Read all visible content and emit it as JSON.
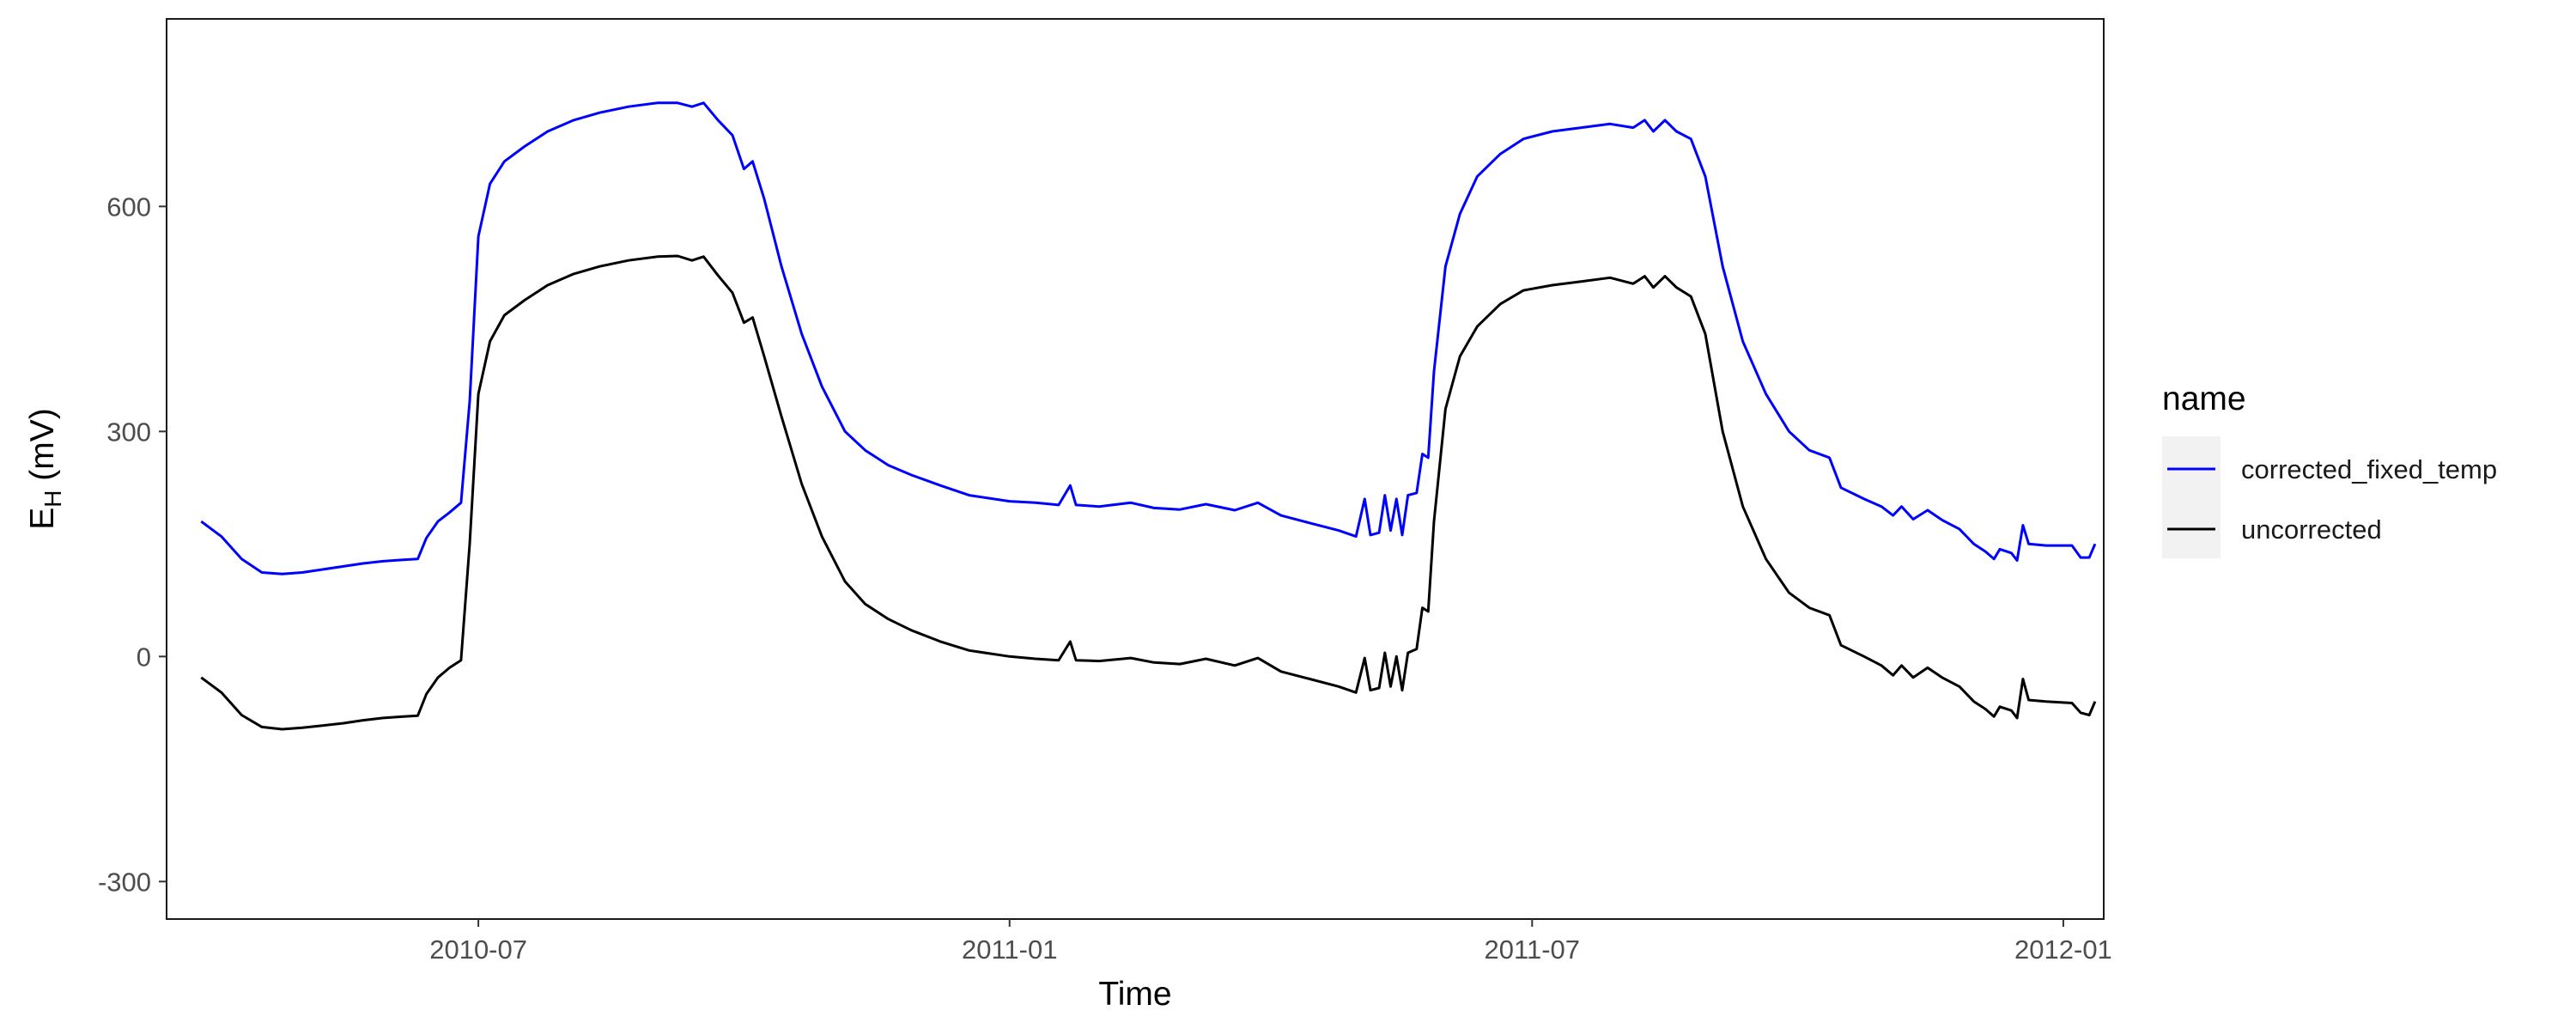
{
  "chart_data": {
    "type": "line",
    "title": "",
    "xlabel": "Time",
    "ylabel_main": "E",
    "ylabel_sub": "H",
    "ylabel_unit": " (mV)",
    "xlim": [
      "2010-03-15",
      "2012-01-15"
    ],
    "ylim": [
      -350,
      850
    ],
    "x_ticks": [
      {
        "date": "2010-07-01",
        "label": "2010-07"
      },
      {
        "date": "2011-01-01",
        "label": "2011-01"
      },
      {
        "date": "2011-07-01",
        "label": "2011-07"
      },
      {
        "date": "2012-01-01",
        "label": "2012-01"
      }
    ],
    "y_ticks": [
      -300,
      0,
      300,
      600
    ],
    "grid": false,
    "legend": {
      "title": "name",
      "position": "right"
    },
    "series": [
      {
        "name": "corrected_fixed_temp",
        "color": "#0000ff",
        "points": [
          [
            "2010-03-27",
            180
          ],
          [
            "2010-04-03",
            160
          ],
          [
            "2010-04-10",
            130
          ],
          [
            "2010-04-17",
            112
          ],
          [
            "2010-04-24",
            110
          ],
          [
            "2010-05-01",
            112
          ],
          [
            "2010-05-08",
            116
          ],
          [
            "2010-05-15",
            120
          ],
          [
            "2010-05-22",
            124
          ],
          [
            "2010-05-29",
            127
          ],
          [
            "2010-06-05",
            129
          ],
          [
            "2010-06-10",
            130
          ],
          [
            "2010-06-13",
            158
          ],
          [
            "2010-06-17",
            180
          ],
          [
            "2010-06-21",
            192
          ],
          [
            "2010-06-25",
            205
          ],
          [
            "2010-06-28",
            340
          ],
          [
            "2010-07-01",
            560
          ],
          [
            "2010-07-05",
            630
          ],
          [
            "2010-07-10",
            660
          ],
          [
            "2010-07-17",
            680
          ],
          [
            "2010-07-25",
            700
          ],
          [
            "2010-08-03",
            715
          ],
          [
            "2010-08-12",
            725
          ],
          [
            "2010-08-22",
            733
          ],
          [
            "2010-09-01",
            738
          ],
          [
            "2010-09-08",
            738
          ],
          [
            "2010-09-13",
            733
          ],
          [
            "2010-09-17",
            738
          ],
          [
            "2010-09-22",
            715
          ],
          [
            "2010-09-27",
            695
          ],
          [
            "2010-10-01",
            650
          ],
          [
            "2010-10-04",
            660
          ],
          [
            "2010-10-08",
            610
          ],
          [
            "2010-10-14",
            520
          ],
          [
            "2010-10-21",
            430
          ],
          [
            "2010-10-28",
            360
          ],
          [
            "2010-11-05",
            300
          ],
          [
            "2010-11-12",
            275
          ],
          [
            "2010-11-20",
            255
          ],
          [
            "2010-11-28",
            242
          ],
          [
            "2010-12-08",
            228
          ],
          [
            "2010-12-18",
            215
          ],
          [
            "2011-01-01",
            207
          ],
          [
            "2011-01-10",
            205
          ],
          [
            "2011-01-18",
            202
          ],
          [
            "2011-01-22",
            228
          ],
          [
            "2011-01-24",
            202
          ],
          [
            "2011-02-01",
            200
          ],
          [
            "2011-02-12",
            205
          ],
          [
            "2011-02-20",
            198
          ],
          [
            "2011-03-01",
            196
          ],
          [
            "2011-03-10",
            203
          ],
          [
            "2011-03-20",
            195
          ],
          [
            "2011-03-28",
            205
          ],
          [
            "2011-04-05",
            188
          ],
          [
            "2011-04-15",
            178
          ],
          [
            "2011-04-25",
            168
          ],
          [
            "2011-05-01",
            160
          ],
          [
            "2011-05-04",
            210
          ],
          [
            "2011-05-06",
            162
          ],
          [
            "2011-05-09",
            165
          ],
          [
            "2011-05-11",
            215
          ],
          [
            "2011-05-13",
            168
          ],
          [
            "2011-05-15",
            210
          ],
          [
            "2011-05-17",
            162
          ],
          [
            "2011-05-19",
            215
          ],
          [
            "2011-05-22",
            218
          ],
          [
            "2011-05-24",
            270
          ],
          [
            "2011-05-26",
            265
          ],
          [
            "2011-05-28",
            380
          ],
          [
            "2011-06-01",
            520
          ],
          [
            "2011-06-06",
            590
          ],
          [
            "2011-06-12",
            640
          ],
          [
            "2011-06-20",
            670
          ],
          [
            "2011-06-28",
            690
          ],
          [
            "2011-07-08",
            700
          ],
          [
            "2011-07-18",
            705
          ],
          [
            "2011-07-28",
            710
          ],
          [
            "2011-08-05",
            705
          ],
          [
            "2011-08-09",
            715
          ],
          [
            "2011-08-12",
            700
          ],
          [
            "2011-08-16",
            715
          ],
          [
            "2011-08-20",
            700
          ],
          [
            "2011-08-25",
            690
          ],
          [
            "2011-08-30",
            640
          ],
          [
            "2011-09-05",
            520
          ],
          [
            "2011-09-12",
            420
          ],
          [
            "2011-09-20",
            350
          ],
          [
            "2011-09-28",
            300
          ],
          [
            "2011-10-05",
            275
          ],
          [
            "2011-10-12",
            265
          ],
          [
            "2011-10-16",
            225
          ],
          [
            "2011-10-24",
            210
          ],
          [
            "2011-10-30",
            200
          ],
          [
            "2011-11-03",
            188
          ],
          [
            "2011-11-06",
            200
          ],
          [
            "2011-11-10",
            183
          ],
          [
            "2011-11-15",
            195
          ],
          [
            "2011-11-20",
            182
          ],
          [
            "2011-11-26",
            170
          ],
          [
            "2011-12-01",
            150
          ],
          [
            "2011-12-05",
            140
          ],
          [
            "2011-12-08",
            130
          ],
          [
            "2011-12-10",
            143
          ],
          [
            "2011-12-14",
            138
          ],
          [
            "2011-12-16",
            128
          ],
          [
            "2011-12-18",
            175
          ],
          [
            "2011-12-20",
            150
          ],
          [
            "2011-12-26",
            148
          ],
          [
            "2012-01-04",
            148
          ],
          [
            "2012-01-07",
            132
          ],
          [
            "2012-01-10",
            132
          ],
          [
            "2012-01-12",
            150
          ]
        ]
      },
      {
        "name": "uncorrected",
        "color": "#000000",
        "points": [
          [
            "2010-03-27",
            -28
          ],
          [
            "2010-04-03",
            -48
          ],
          [
            "2010-04-10",
            -78
          ],
          [
            "2010-04-17",
            -94
          ],
          [
            "2010-04-24",
            -97
          ],
          [
            "2010-05-01",
            -95
          ],
          [
            "2010-05-08",
            -92
          ],
          [
            "2010-05-15",
            -89
          ],
          [
            "2010-05-22",
            -85
          ],
          [
            "2010-05-29",
            -82
          ],
          [
            "2010-06-05",
            -80
          ],
          [
            "2010-06-10",
            -79
          ],
          [
            "2010-06-13",
            -50
          ],
          [
            "2010-06-17",
            -28
          ],
          [
            "2010-06-21",
            -15
          ],
          [
            "2010-06-25",
            -5
          ],
          [
            "2010-06-28",
            150
          ],
          [
            "2010-07-01",
            350
          ],
          [
            "2010-07-05",
            420
          ],
          [
            "2010-07-10",
            455
          ],
          [
            "2010-07-17",
            475
          ],
          [
            "2010-07-25",
            495
          ],
          [
            "2010-08-03",
            510
          ],
          [
            "2010-08-12",
            520
          ],
          [
            "2010-08-22",
            528
          ],
          [
            "2010-09-01",
            533
          ],
          [
            "2010-09-08",
            534
          ],
          [
            "2010-09-13",
            528
          ],
          [
            "2010-09-17",
            533
          ],
          [
            "2010-09-22",
            508
          ],
          [
            "2010-09-27",
            485
          ],
          [
            "2010-10-01",
            445
          ],
          [
            "2010-10-04",
            452
          ],
          [
            "2010-10-08",
            400
          ],
          [
            "2010-10-14",
            320
          ],
          [
            "2010-10-21",
            230
          ],
          [
            "2010-10-28",
            160
          ],
          [
            "2010-11-05",
            100
          ],
          [
            "2010-11-12",
            70
          ],
          [
            "2010-11-20",
            50
          ],
          [
            "2010-11-28",
            35
          ],
          [
            "2010-12-08",
            20
          ],
          [
            "2010-12-18",
            8
          ],
          [
            "2011-01-01",
            0
          ],
          [
            "2011-01-10",
            -3
          ],
          [
            "2011-01-18",
            -5
          ],
          [
            "2011-01-22",
            20
          ],
          [
            "2011-01-24",
            -5
          ],
          [
            "2011-02-01",
            -6
          ],
          [
            "2011-02-12",
            -2
          ],
          [
            "2011-02-20",
            -8
          ],
          [
            "2011-03-01",
            -10
          ],
          [
            "2011-03-10",
            -3
          ],
          [
            "2011-03-20",
            -12
          ],
          [
            "2011-03-28",
            -2
          ],
          [
            "2011-04-05",
            -20
          ],
          [
            "2011-04-15",
            -30
          ],
          [
            "2011-04-25",
            -40
          ],
          [
            "2011-05-01",
            -48
          ],
          [
            "2011-05-04",
            -2
          ],
          [
            "2011-05-06",
            -45
          ],
          [
            "2011-05-09",
            -42
          ],
          [
            "2011-05-11",
            5
          ],
          [
            "2011-05-13",
            -40
          ],
          [
            "2011-05-15",
            0
          ],
          [
            "2011-05-17",
            -45
          ],
          [
            "2011-05-19",
            5
          ],
          [
            "2011-05-22",
            10
          ],
          [
            "2011-05-24",
            65
          ],
          [
            "2011-05-26",
            60
          ],
          [
            "2011-05-28",
            180
          ],
          [
            "2011-06-01",
            330
          ],
          [
            "2011-06-06",
            400
          ],
          [
            "2011-06-12",
            440
          ],
          [
            "2011-06-20",
            470
          ],
          [
            "2011-06-28",
            488
          ],
          [
            "2011-07-08",
            495
          ],
          [
            "2011-07-18",
            500
          ],
          [
            "2011-07-28",
            505
          ],
          [
            "2011-08-05",
            497
          ],
          [
            "2011-08-09",
            507
          ],
          [
            "2011-08-12",
            492
          ],
          [
            "2011-08-16",
            507
          ],
          [
            "2011-08-20",
            492
          ],
          [
            "2011-08-25",
            480
          ],
          [
            "2011-08-30",
            430
          ],
          [
            "2011-09-05",
            300
          ],
          [
            "2011-09-12",
            200
          ],
          [
            "2011-09-20",
            130
          ],
          [
            "2011-09-28",
            85
          ],
          [
            "2011-10-05",
            65
          ],
          [
            "2011-10-12",
            55
          ],
          [
            "2011-10-16",
            15
          ],
          [
            "2011-10-24",
            0
          ],
          [
            "2011-10-30",
            -12
          ],
          [
            "2011-11-03",
            -25
          ],
          [
            "2011-11-06",
            -12
          ],
          [
            "2011-11-10",
            -28
          ],
          [
            "2011-11-15",
            -15
          ],
          [
            "2011-11-20",
            -28
          ],
          [
            "2011-11-26",
            -40
          ],
          [
            "2011-12-01",
            -60
          ],
          [
            "2011-12-05",
            -70
          ],
          [
            "2011-12-08",
            -80
          ],
          [
            "2011-12-10",
            -67
          ],
          [
            "2011-12-14",
            -72
          ],
          [
            "2011-12-16",
            -82
          ],
          [
            "2011-12-18",
            -30
          ],
          [
            "2011-12-20",
            -58
          ],
          [
            "2011-12-26",
            -60
          ],
          [
            "2012-01-04",
            -62
          ],
          [
            "2012-01-07",
            -75
          ],
          [
            "2012-01-10",
            -78
          ],
          [
            "2012-01-12",
            -60
          ]
        ]
      }
    ]
  }
}
